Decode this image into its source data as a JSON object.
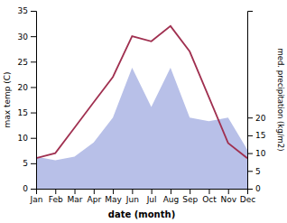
{
  "chart_data": {
    "type": "line",
    "categories": [
      "Jan",
      "Feb",
      "Mar",
      "Apr",
      "May",
      "Jun",
      "Jul",
      "Aug",
      "Sep",
      "Oct",
      "Nov",
      "Dec"
    ],
    "series": [
      {
        "type": "area",
        "axis": "y2",
        "color": "#b8c0e8",
        "values": [
          9,
          8,
          9,
          13,
          20,
          34,
          23,
          34,
          20,
          19,
          20,
          11
        ]
      },
      {
        "type": "line",
        "color": "#a03050",
        "values": [
          6,
          7,
          12,
          17,
          22,
          30,
          29,
          32,
          27,
          18,
          9,
          6
        ]
      }
    ],
    "xlabel": "date (month)",
    "ylabel": "max temp (C)",
    "y2label": "med. precipitation (kg/m2)",
    "ylim": [
      0,
      35
    ],
    "yticks": [
      0,
      5,
      10,
      15,
      20,
      25,
      30,
      35
    ],
    "y2lim": [
      0,
      50
    ],
    "y2ticks": [
      0,
      5,
      10,
      15,
      20
    ]
  }
}
